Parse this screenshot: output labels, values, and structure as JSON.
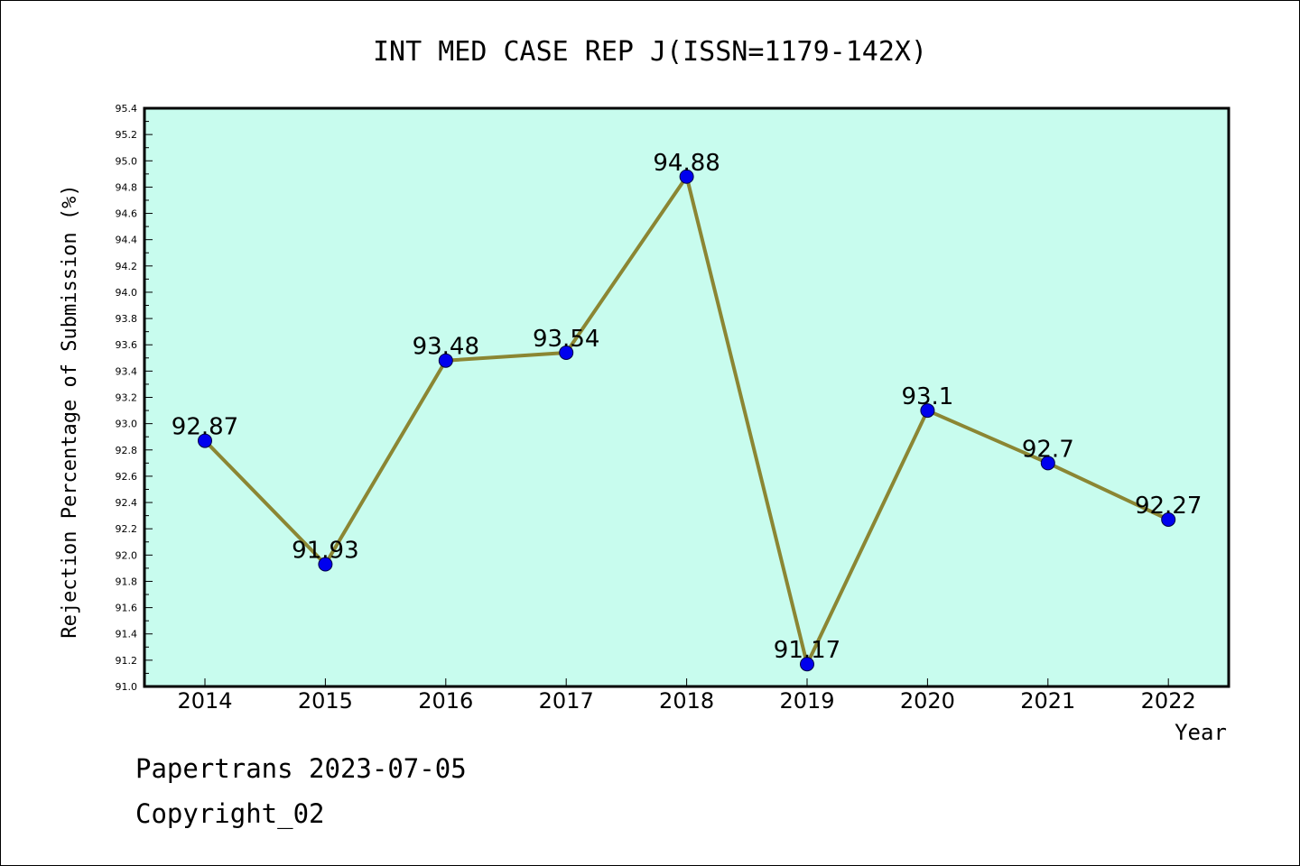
{
  "footer": {
    "line1": "Papertrans 2023-07-05",
    "line2": "Copyright_02"
  },
  "chart_data": {
    "type": "line",
    "title": "INT MED CASE REP J(ISSN=1179-142X)",
    "xlabel": "Year",
    "ylabel": "Rejection Percentage of Submission (%)",
    "categories": [
      "2014",
      "2015",
      "2016",
      "2017",
      "2018",
      "2019",
      "2020",
      "2021",
      "2022"
    ],
    "series": [
      {
        "values": [
          92.87,
          91.93,
          93.48,
          93.54,
          94.88,
          91.17,
          93.1,
          92.7,
          92.27
        ],
        "data_labels": [
          "92.87",
          "91.93",
          "93.48",
          "93.54",
          "94.88",
          "91.17",
          "93.1",
          "92.7",
          "92.27"
        ],
        "line_color": "#8b8633",
        "marker_color": "#0000ee"
      }
    ],
    "ylim": [
      91.0,
      95.4
    ],
    "yticks": [
      "91.0",
      "91.2",
      "91.4",
      "91.6",
      "91.8",
      "92.0",
      "92.2",
      "92.4",
      "92.6",
      "92.8",
      "93.0",
      "93.2",
      "93.4",
      "93.6",
      "93.8",
      "94.0",
      "94.2",
      "94.4",
      "94.6",
      "94.8",
      "95.0",
      "95.2",
      "95.4"
    ],
    "plot_background": "#c8fcee",
    "grid": false,
    "legend": "none"
  }
}
